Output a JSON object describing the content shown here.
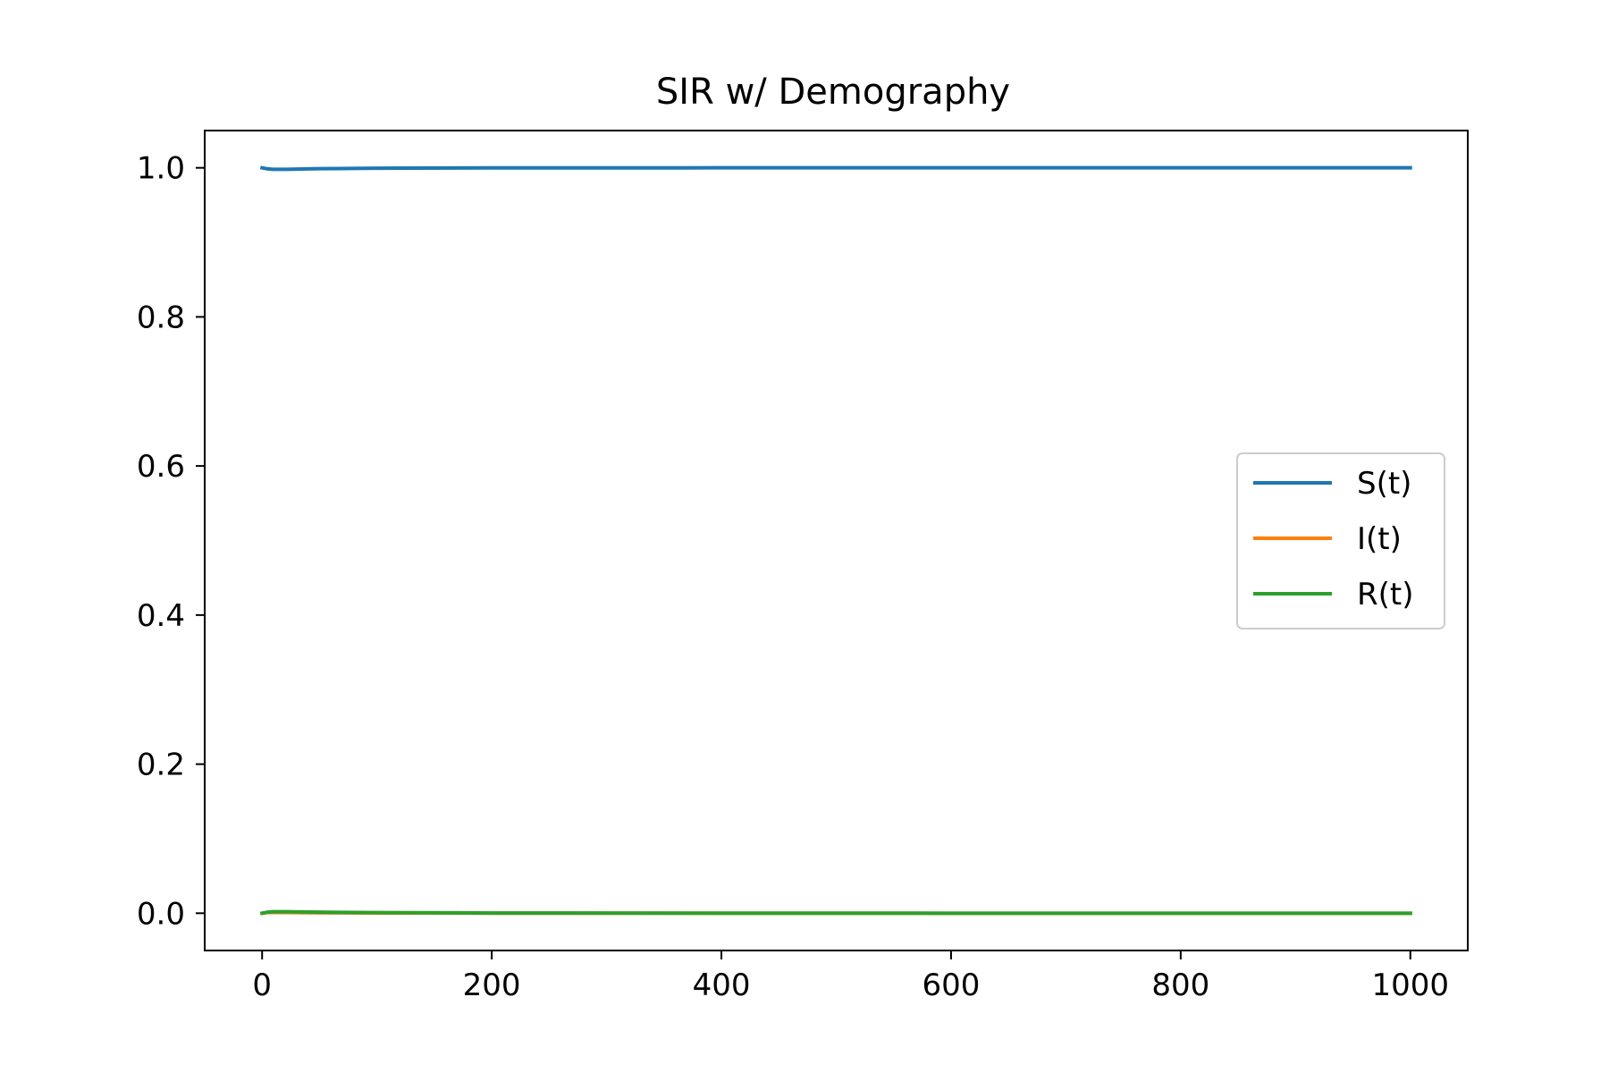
{
  "chart_data": {
    "type": "line",
    "title": "SIR w/ Demography",
    "xlabel": "",
    "ylabel": "",
    "xlim": [
      -50,
      1050
    ],
    "ylim": [
      -0.05,
      1.05
    ],
    "xticks": [
      0,
      200,
      400,
      600,
      800,
      1000
    ],
    "yticks": [
      0.0,
      0.2,
      0.4,
      0.6,
      0.8,
      1.0
    ],
    "xtick_labels": [
      "0",
      "200",
      "400",
      "600",
      "800",
      "1000"
    ],
    "ytick_labels": [
      "0.0",
      "0.2",
      "0.4",
      "0.6",
      "0.8",
      "1.0"
    ],
    "grid": false,
    "legend_position": "center-right",
    "series": [
      {
        "name": "S(t)",
        "color": "#1f77b4",
        "x": [
          0,
          5,
          10,
          20,
          50,
          100,
          200,
          400,
          600,
          800,
          1000
        ],
        "y": [
          1.0,
          0.9985,
          0.998,
          0.998,
          0.9988,
          0.9995,
          0.9999,
          1.0,
          1.0,
          1.0,
          1.0
        ]
      },
      {
        "name": "I(t)",
        "color": "#ff7f0e",
        "x": [
          0,
          5,
          10,
          20,
          50,
          100,
          200,
          400,
          600,
          800,
          1000
        ],
        "y": [
          0.0,
          0.001,
          0.0012,
          0.001,
          0.0006,
          0.0003,
          0.0001,
          0.0,
          0.0,
          0.0,
          0.0
        ]
      },
      {
        "name": "R(t)",
        "color": "#2ca02c",
        "x": [
          0,
          5,
          10,
          20,
          50,
          100,
          200,
          400,
          600,
          800,
          1000
        ],
        "y": [
          0.0,
          0.0015,
          0.002,
          0.002,
          0.0014,
          0.0008,
          0.0003,
          0.0001,
          0.0,
          0.0,
          0.0
        ]
      }
    ]
  }
}
